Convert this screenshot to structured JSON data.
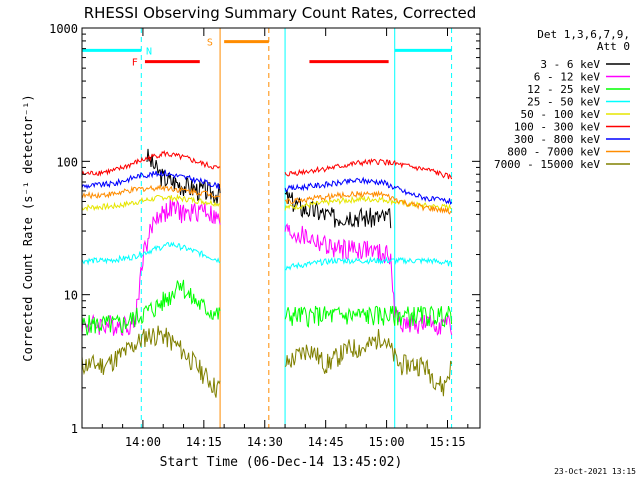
{
  "chart_data": {
    "type": "line",
    "title": "RHESSI Observing Summary Count Rates, Corrected",
    "xlabel": "Start Time (06-Dec-14 13:45:02)",
    "ylabel": "Corrected Count Rate (s⁻¹ detector⁻¹)",
    "y_scale": "log",
    "ylim": [
      1,
      1000
    ],
    "xlim_minutes": [
      0,
      98
    ],
    "x_ticks": [
      {
        "minute": 15,
        "label": "14:00"
      },
      {
        "minute": 30,
        "label": "14:15"
      },
      {
        "minute": 45,
        "label": "14:30"
      },
      {
        "minute": 60,
        "label": "14:45"
      },
      {
        "minute": 75,
        "label": "15:00"
      },
      {
        "minute": 90,
        "label": "15:15"
      }
    ],
    "y_ticks": [
      {
        "value": 1,
        "label": "1"
      },
      {
        "value": 10,
        "label": "10"
      },
      {
        "value": 100,
        "label": "100"
      },
      {
        "value": 1000,
        "label": "1000"
      }
    ],
    "legend_title": [
      "Det 1,3,6,7,9,",
      "Att 0"
    ],
    "legend_placement": "right",
    "data_gap_minutes": [
      34,
      50
    ],
    "series": [
      {
        "name": "3 - 6 keV",
        "color": "#000000",
        "points": [
          [
            16,
            110
          ],
          [
            18,
            90
          ],
          [
            20,
            75
          ],
          [
            24,
            68
          ],
          [
            28,
            62
          ],
          [
            33,
            58
          ],
          [
            50,
            55
          ],
          [
            54,
            45
          ],
          [
            58,
            42
          ],
          [
            62,
            38
          ],
          [
            66,
            40
          ],
          [
            70,
            38
          ],
          [
            74,
            38
          ],
          [
            76,
            38
          ]
        ]
      },
      {
        "name": "6 - 12 keV",
        "color": "#ff00ff",
        "points": [
          [
            0,
            6
          ],
          [
            13,
            6
          ],
          [
            15,
            20
          ],
          [
            18,
            38
          ],
          [
            22,
            45
          ],
          [
            26,
            40
          ],
          [
            30,
            45
          ],
          [
            34,
            35
          ],
          [
            50,
            30
          ],
          [
            54,
            28
          ],
          [
            58,
            25
          ],
          [
            62,
            22
          ],
          [
            66,
            22
          ],
          [
            70,
            22
          ],
          [
            74,
            20
          ],
          [
            76,
            20
          ],
          [
            77,
            7
          ],
          [
            80,
            6
          ],
          [
            86,
            6
          ],
          [
            91,
            6
          ]
        ]
      },
      {
        "name": "12 - 25 keV",
        "color": "#00ff00",
        "points": [
          [
            0,
            6
          ],
          [
            10,
            6
          ],
          [
            14,
            7
          ],
          [
            18,
            8
          ],
          [
            22,
            10
          ],
          [
            24,
            13
          ],
          [
            26,
            10
          ],
          [
            30,
            8
          ],
          [
            34,
            7
          ],
          [
            50,
            7
          ],
          [
            56,
            7
          ],
          [
            62,
            7
          ],
          [
            68,
            7
          ],
          [
            74,
            7
          ],
          [
            80,
            7
          ],
          [
            86,
            7
          ],
          [
            91,
            7
          ]
        ]
      },
      {
        "name": "25 - 50 keV",
        "color": "#00ffff",
        "points": [
          [
            0,
            18
          ],
          [
            6,
            18
          ],
          [
            12,
            19
          ],
          [
            18,
            22
          ],
          [
            22,
            24
          ],
          [
            26,
            22
          ],
          [
            30,
            20
          ],
          [
            34,
            18
          ],
          [
            50,
            16
          ],
          [
            56,
            17
          ],
          [
            62,
            18
          ],
          [
            68,
            18
          ],
          [
            74,
            18
          ],
          [
            80,
            18
          ],
          [
            86,
            18
          ],
          [
            91,
            17
          ]
        ]
      },
      {
        "name": "50 - 100 keV",
        "color": "#e6e600",
        "points": [
          [
            0,
            45
          ],
          [
            8,
            46
          ],
          [
            14,
            50
          ],
          [
            20,
            54
          ],
          [
            26,
            52
          ],
          [
            30,
            50
          ],
          [
            34,
            48
          ],
          [
            50,
            45
          ],
          [
            56,
            47
          ],
          [
            62,
            50
          ],
          [
            68,
            52
          ],
          [
            74,
            52
          ],
          [
            80,
            48
          ],
          [
            86,
            46
          ],
          [
            91,
            45
          ]
        ]
      },
      {
        "name": "100 - 300 keV",
        "color": "#ff0000",
        "points": [
          [
            0,
            80
          ],
          [
            8,
            85
          ],
          [
            14,
            100
          ],
          [
            20,
            115
          ],
          [
            26,
            105
          ],
          [
            30,
            95
          ],
          [
            34,
            88
          ],
          [
            50,
            80
          ],
          [
            56,
            85
          ],
          [
            62,
            90
          ],
          [
            68,
            97
          ],
          [
            74,
            100
          ],
          [
            80,
            92
          ],
          [
            86,
            85
          ],
          [
            91,
            75
          ]
        ]
      },
      {
        "name": "300 - 800 keV",
        "color": "#0000ff",
        "points": [
          [
            0,
            65
          ],
          [
            8,
            68
          ],
          [
            14,
            78
          ],
          [
            20,
            82
          ],
          [
            26,
            75
          ],
          [
            30,
            70
          ],
          [
            34,
            65
          ],
          [
            50,
            62
          ],
          [
            56,
            65
          ],
          [
            62,
            68
          ],
          [
            68,
            72
          ],
          [
            74,
            70
          ],
          [
            80,
            58
          ],
          [
            86,
            52
          ],
          [
            91,
            50
          ]
        ]
      },
      {
        "name": "800 - 7000 keV",
        "color": "#ff8c00",
        "points": [
          [
            0,
            55
          ],
          [
            8,
            57
          ],
          [
            14,
            62
          ],
          [
            20,
            64
          ],
          [
            26,
            60
          ],
          [
            30,
            58
          ],
          [
            34,
            55
          ],
          [
            50,
            50
          ],
          [
            56,
            52
          ],
          [
            62,
            55
          ],
          [
            68,
            57
          ],
          [
            74,
            56
          ],
          [
            80,
            48
          ],
          [
            86,
            44
          ],
          [
            91,
            42
          ]
        ]
      },
      {
        "name": "7000 - 15000 keV",
        "color": "#808000",
        "points": [
          [
            0,
            3
          ],
          [
            6,
            3
          ],
          [
            12,
            4
          ],
          [
            16,
            5
          ],
          [
            20,
            5
          ],
          [
            24,
            4
          ],
          [
            28,
            3
          ],
          [
            33,
            2
          ],
          [
            50,
            3
          ],
          [
            56,
            4
          ],
          [
            60,
            3
          ],
          [
            66,
            4
          ],
          [
            70,
            4
          ],
          [
            74,
            5
          ],
          [
            78,
            3
          ],
          [
            84,
            3
          ],
          [
            89,
            2
          ],
          [
            91,
            3
          ]
        ]
      }
    ],
    "annotations": [
      {
        "label": "N",
        "color": "#00ffff",
        "level": 680
      },
      {
        "label": "F",
        "color": "#ff0000",
        "level": 560
      },
      {
        "label": "S",
        "color": "#ff8c00",
        "level": 790
      }
    ],
    "flag_bars": [
      {
        "flag": "night",
        "color": "#00ffff",
        "start_min": 0,
        "end_min": 14.6,
        "level": 680
      },
      {
        "flag": "night",
        "color": "#00ffff",
        "start_min": 77,
        "end_min": 91,
        "level": 680
      },
      {
        "flag": "flare",
        "color": "#ff0000",
        "start_min": 15.5,
        "end_min": 29,
        "level": 560
      },
      {
        "flag": "flare",
        "color": "#ff0000",
        "start_min": 56,
        "end_min": 75.5,
        "level": 560
      },
      {
        "flag": "saa",
        "color": "#ff8c00",
        "start_min": 35,
        "end_min": 46,
        "level": 790
      }
    ],
    "markers": [
      {
        "minute": 14.6,
        "color": "#00ffff",
        "style": "dashed"
      },
      {
        "minute": 77,
        "color": "#00ffff",
        "style": "solid"
      },
      {
        "minute": 91,
        "color": "#00ffff",
        "style": "dashed"
      },
      {
        "minute": 34,
        "color": "#ff8c00",
        "style": "solid"
      },
      {
        "minute": 46,
        "color": "#ff8c00",
        "style": "dashed"
      },
      {
        "minute": 50,
        "color": "#00ffff",
        "style": "solid"
      }
    ]
  },
  "footer": {
    "date": "23-Oct-2021 13:15"
  }
}
